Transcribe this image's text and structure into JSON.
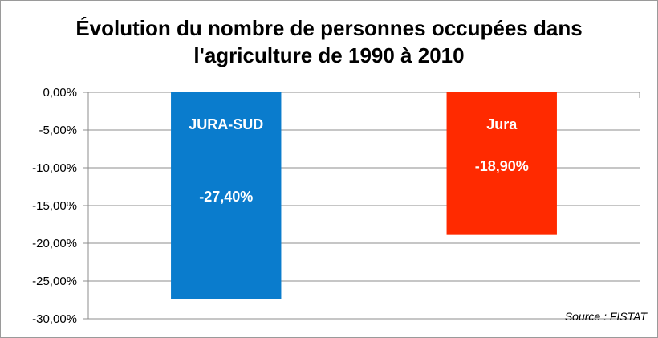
{
  "chart_data": {
    "type": "bar",
    "title": "Évolution du nombre de personnes occupées dans l'agriculture de 1990 à 2010",
    "title_lines": [
      "Évolution du nombre de personnes occupées dans",
      "l'agriculture de 1990 à 2010"
    ],
    "categories": [
      "JURA-SUD",
      "Jura"
    ],
    "values": [
      -27.4,
      -18.9
    ],
    "value_labels": [
      "-27,40%",
      "-18,90%"
    ],
    "colors": [
      "#0a7ccd",
      "#ff2a00"
    ],
    "ylim": [
      -30,
      0
    ],
    "yticks": [
      0,
      -5,
      -10,
      -15,
      -20,
      -25,
      -30
    ],
    "ytick_labels": [
      "0,00%",
      "-5,00%",
      "-10,00%",
      "-15,00%",
      "-20,00%",
      "-25,00%",
      "-30,00%"
    ],
    "grid": true,
    "xlabel": "",
    "ylabel": "",
    "source": "Source : FISTAT"
  }
}
